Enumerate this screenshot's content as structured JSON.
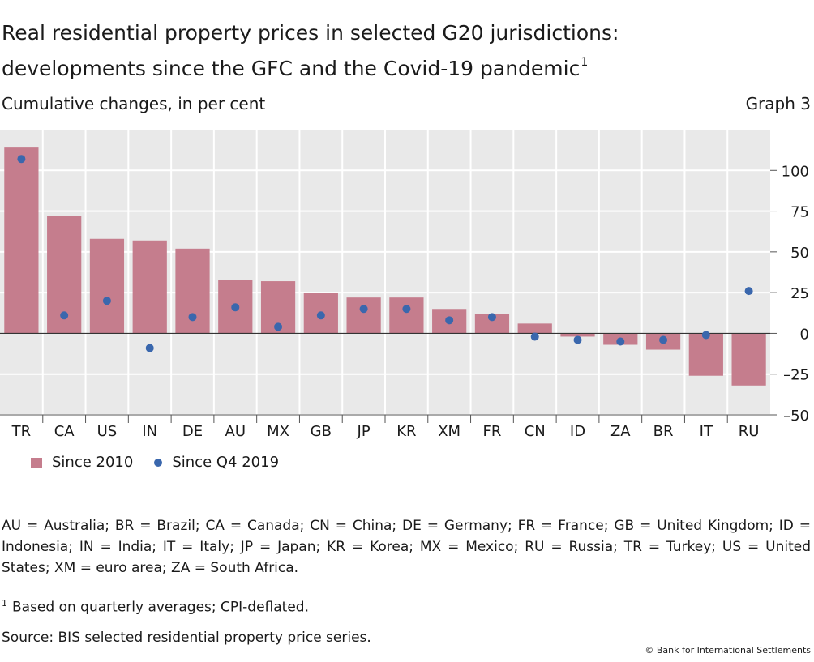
{
  "header": {
    "title_line1": "Real residential property prices in selected G20 jurisdictions:",
    "title_line2": "developments since the GFC and the Covid-19 pandemic",
    "title_footnote_ref": "1",
    "subtitle": "Cumulative changes, in per cent",
    "graph_label": "Graph 3"
  },
  "chart_data": {
    "type": "bar",
    "categories": [
      "TR",
      "CA",
      "US",
      "IN",
      "DE",
      "AU",
      "MX",
      "GB",
      "JP",
      "KR",
      "XM",
      "FR",
      "CN",
      "ID",
      "ZA",
      "BR",
      "IT",
      "RU"
    ],
    "series": [
      {
        "name": "Since 2010",
        "kind": "bar",
        "color": "#c57d8d",
        "values": [
          114,
          72,
          58,
          57,
          52,
          33,
          32,
          25,
          22,
          22,
          15,
          12,
          6,
          -2,
          -7,
          -10,
          -26,
          -32
        ]
      },
      {
        "name": "Since Q4 2019",
        "kind": "dot",
        "color": "#3a67ad",
        "values": [
          107,
          11,
          20,
          -9,
          10,
          16,
          4,
          11,
          15,
          15,
          8,
          10,
          -2,
          -4,
          -5,
          -4,
          -1,
          26
        ]
      }
    ],
    "y_ticks": [
      100,
      75,
      50,
      25,
      0,
      -25,
      -50
    ],
    "y_tick_labels": [
      "100",
      "75",
      "50",
      "25",
      "0",
      "–25",
      "–50"
    ],
    "ylim": [
      -50,
      125
    ],
    "y_axis_side": "right",
    "grid": true,
    "legend_position": "bottom-left"
  },
  "legend": {
    "bar_label": "Since 2010",
    "dot_label": "Since Q4 2019"
  },
  "notes": {
    "abbreviations": "AU = Australia; BR = Brazil; CA = Canada; CN = China; DE = Germany; FR = France; GB = United Kingdom; ID = Indonesia; IN = India; IT = Italy; JP = Japan; KR = Korea; MX = Mexico; RU = Russia; TR = Turkey; US = United States; XM = euro area; ZA = South Africa.",
    "footnote_marker": "1",
    "footnote": "Based on quarterly averages; CPI-deflated.",
    "source": "Source: BIS selected residential property price series.",
    "copyright": "© Bank for International Settlements"
  }
}
